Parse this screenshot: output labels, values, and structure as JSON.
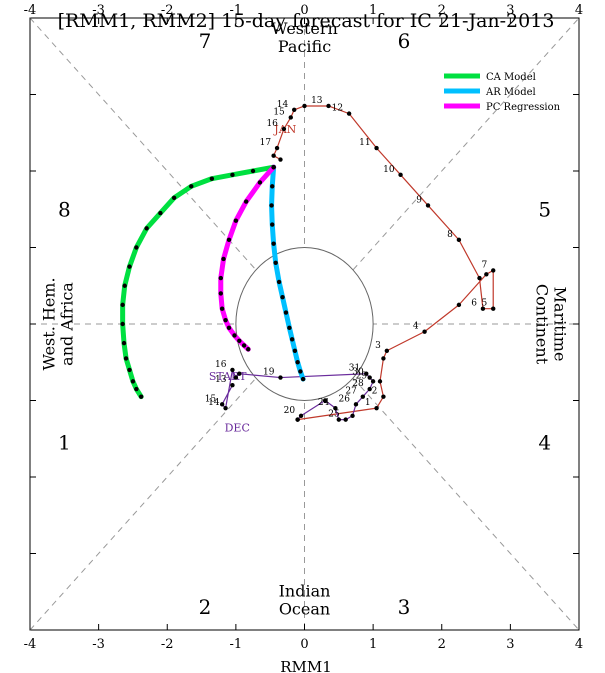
{
  "chart_data": {
    "type": "scatter",
    "title": "[RMM1, RMM2] 15-day forecast for IC 21-Jan-2013",
    "xlabel": "RMM1",
    "ylabel": "",
    "xlim": [
      -4,
      4
    ],
    "ylim": [
      -4,
      4
    ],
    "x_ticks": [
      -4,
      -3,
      -2,
      -1,
      0,
      1,
      2,
      3,
      4
    ],
    "top_ticks": [
      -4,
      -3,
      -2,
      -1,
      0,
      1,
      2,
      3,
      4
    ],
    "grid": false,
    "legend_position": "top-right",
    "phase_numbers": [
      {
        "label": "7",
        "x": -1.45,
        "y": 3.7
      },
      {
        "label": "6",
        "x": 1.45,
        "y": 3.7
      },
      {
        "label": "8",
        "x": -3.5,
        "y": 1.5
      },
      {
        "label": "5",
        "x": 3.5,
        "y": 1.5
      },
      {
        "label": "1",
        "x": -3.5,
        "y": -1.55
      },
      {
        "label": "4",
        "x": 3.5,
        "y": -1.55
      },
      {
        "label": "2",
        "x": -1.45,
        "y": -3.7
      },
      {
        "label": "3",
        "x": 1.45,
        "y": -3.7
      }
    ],
    "regions": [
      {
        "lines": [
          "Western",
          "Pacific"
        ],
        "x": 0,
        "y": 3.75,
        "rotate": 0
      },
      {
        "lines": [
          "Indian",
          "Ocean"
        ],
        "x": 0,
        "y": -3.6,
        "rotate": 0
      },
      {
        "lines": [
          "West. Hem.",
          "and Africa"
        ],
        "x": -3.6,
        "y": 0,
        "rotate": -90
      },
      {
        "lines": [
          "Maritime",
          "Continent"
        ],
        "x": 3.6,
        "y": 0,
        "rotate": 90
      }
    ],
    "month_labels": [
      {
        "label": "JAN",
        "x": -0.28,
        "y": 2.55,
        "color": "#c0392b"
      },
      {
        "label": "DEC",
        "x": -0.98,
        "y": -1.35,
        "color": "#6a2c9c"
      },
      {
        "label": "START",
        "x": -1.12,
        "y": -0.68,
        "color": "#6a2c9c"
      }
    ],
    "series": [
      {
        "name": "observed-january",
        "color": "#c0392b",
        "x": [
          -0.1,
          1.05,
          1.15,
          1.1,
          1.15,
          1.2,
          1.75,
          2.25,
          2.65,
          2.75,
          2.75,
          2.6,
          2.55,
          2.25,
          1.8,
          1.4,
          1.05,
          0.65,
          0.35,
          0.0,
          -0.15,
          -0.2,
          -0.3,
          -0.4,
          -0.45,
          -0.35
        ],
        "y": [
          -1.25,
          -1.1,
          -0.95,
          -0.75,
          -0.45,
          -0.35,
          -0.1,
          0.25,
          0.65,
          0.7,
          0.2,
          0.2,
          0.6,
          1.1,
          1.55,
          1.95,
          2.3,
          2.75,
          2.85,
          2.85,
          2.8,
          2.7,
          2.55,
          2.3,
          2.2,
          2.15
        ],
        "point_labels": [
          {
            "label": "1",
            "i": 1
          },
          {
            "label": "2",
            "i": 2
          },
          {
            "label": "3",
            "i": 5
          },
          {
            "label": "4",
            "i": 6
          },
          {
            "label": "5",
            "i": 10
          },
          {
            "label": "6",
            "i": 11
          },
          {
            "label": "7",
            "i": 9
          },
          {
            "label": "8",
            "i": 13
          },
          {
            "label": "9",
            "i": 14
          },
          {
            "label": "10",
            "i": 15
          },
          {
            "label": "11",
            "i": 16
          },
          {
            "label": "12",
            "i": 17
          },
          {
            "label": "13",
            "i": 18
          },
          {
            "label": "14",
            "i": 20
          },
          {
            "label": "15",
            "i": 21
          },
          {
            "label": "16",
            "i": 22
          },
          {
            "label": "17",
            "i": 23
          }
        ]
      },
      {
        "name": "observed-december",
        "color": "#6a2c9c",
        "x": [
          -0.1,
          -0.05,
          0.3,
          0.45,
          0.5,
          0.6,
          0.7,
          0.75,
          0.85,
          0.95,
          1.0,
          0.95,
          0.9,
          -0.35,
          -0.95,
          -1.0,
          -1.05,
          -1.15,
          -1.2,
          -1.05
        ],
        "y": [
          -1.25,
          -1.2,
          -1.0,
          -1.1,
          -1.25,
          -1.25,
          -1.2,
          -1.05,
          -0.95,
          -0.85,
          -0.75,
          -0.7,
          -0.65,
          -0.7,
          -0.65,
          -0.7,
          -0.6,
          -1.1,
          -1.05,
          -0.8
        ],
        "point_labels": [
          {
            "label": "19",
            "i": 13
          },
          {
            "label": "20",
            "i": 1
          },
          {
            "label": "24",
            "i": 3
          },
          {
            "label": "25",
            "i": 5
          },
          {
            "label": "26",
            "i": 7
          },
          {
            "label": "27",
            "i": 8
          },
          {
            "label": "28",
            "i": 9
          },
          {
            "label": "29",
            "i": 10
          },
          {
            "label": "30",
            "i": 11
          },
          {
            "label": "31",
            "i": 12
          },
          {
            "label": "13",
            "i": 19
          },
          {
            "label": "14",
            "i": 17
          },
          {
            "label": "15",
            "i": 18
          },
          {
            "label": "16",
            "i": 16
          }
        ]
      },
      {
        "name": "CA Model",
        "color": "#00e040",
        "x": [
          -0.45,
          -0.75,
          -1.05,
          -1.35,
          -1.65,
          -1.9,
          -2.1,
          -2.3,
          -2.45,
          -2.55,
          -2.62,
          -2.65,
          -2.65,
          -2.63,
          -2.6,
          -2.55,
          -2.5,
          -2.45,
          -2.38
        ],
        "y": [
          2.05,
          2.0,
          1.95,
          1.9,
          1.8,
          1.65,
          1.45,
          1.25,
          1.0,
          0.75,
          0.5,
          0.25,
          0.0,
          -0.25,
          -0.45,
          -0.6,
          -0.75,
          -0.85,
          -0.95
        ]
      },
      {
        "name": "AR Model",
        "color": "#00c0ff",
        "x": [
          -0.45,
          -0.47,
          -0.48,
          -0.47,
          -0.45,
          -0.42,
          -0.37,
          -0.32,
          -0.27,
          -0.22,
          -0.18,
          -0.14,
          -0.1,
          -0.06,
          -0.02
        ],
        "y": [
          2.05,
          1.8,
          1.55,
          1.3,
          1.05,
          0.8,
          0.55,
          0.35,
          0.15,
          -0.05,
          -0.2,
          -0.35,
          -0.5,
          -0.62,
          -0.72
        ]
      },
      {
        "name": "PC Regression",
        "color": "#ff00ff",
        "x": [
          -0.45,
          -0.65,
          -0.85,
          -1.0,
          -1.1,
          -1.18,
          -1.22,
          -1.22,
          -1.2,
          -1.15,
          -1.1,
          -1.02,
          -0.95,
          -0.88,
          -0.82
        ],
        "y": [
          2.05,
          1.85,
          1.6,
          1.35,
          1.1,
          0.85,
          0.6,
          0.4,
          0.2,
          0.05,
          -0.05,
          -0.15,
          -0.22,
          -0.28,
          -0.33
        ]
      }
    ],
    "legend": [
      {
        "label": "CA Model",
        "color": "#00e040"
      },
      {
        "label": "AR Model",
        "color": "#00c0ff"
      },
      {
        "label": "PC Regression",
        "color": "#ff00ff"
      }
    ]
  }
}
